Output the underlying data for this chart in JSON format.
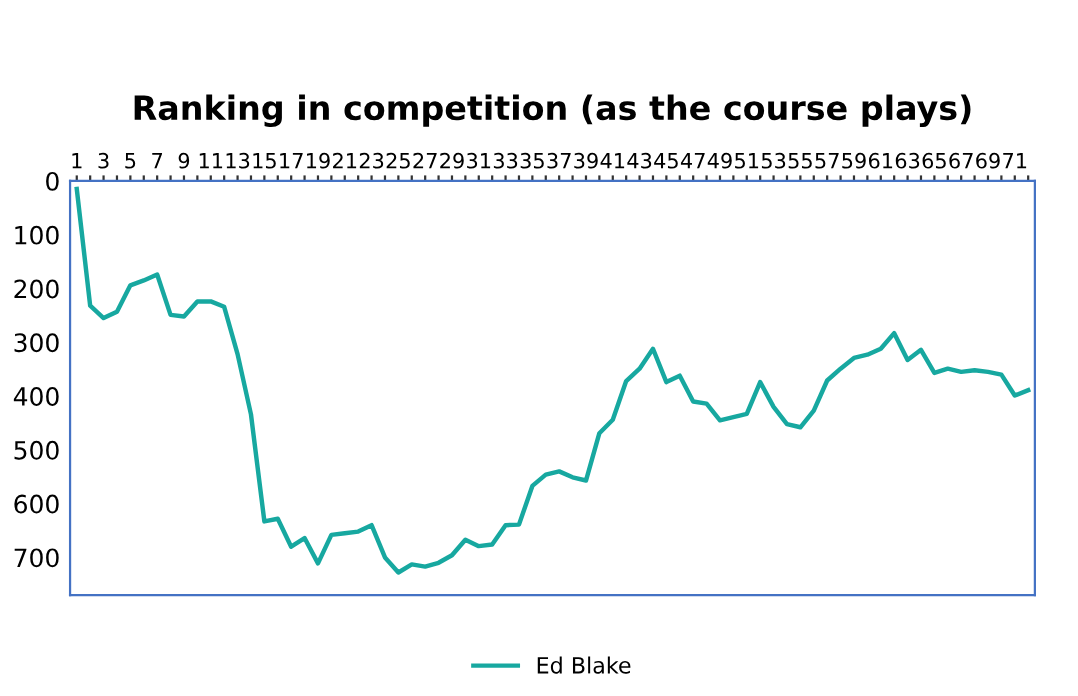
{
  "chart_data": {
    "type": "line",
    "title": "Ranking in competition (as the course plays)",
    "categories": [
      "1",
      null,
      "3",
      null,
      "5",
      null,
      "7",
      null,
      "9",
      null,
      "11",
      null,
      "13",
      null,
      "15",
      null,
      "17",
      null,
      "19",
      null,
      "21",
      null,
      "23",
      null,
      "25",
      null,
      "27",
      null,
      "29",
      null,
      "31",
      null,
      "33",
      null,
      "35",
      null,
      "37",
      null,
      "39",
      null,
      "41",
      null,
      "43",
      null,
      "45",
      null,
      "47",
      null,
      "49",
      null,
      "51",
      null,
      "53",
      null,
      "55",
      null,
      "57",
      null,
      "59",
      null,
      "61",
      null,
      "63",
      null,
      "65",
      null,
      "67",
      null,
      "69",
      null,
      "71",
      null
    ],
    "series": [
      {
        "name": "Ed Blake",
        "color": "#17a8a0",
        "values": [
          15,
          232,
          255,
          243,
          194,
          185,
          174,
          249,
          252,
          224,
          224,
          234,
          322,
          434,
          633,
          628,
          680,
          664,
          711,
          658,
          655,
          652,
          640,
          700,
          728,
          713,
          717,
          710,
          696,
          667,
          679,
          676,
          640,
          639,
          567,
          546,
          540,
          551,
          557,
          469,
          444,
          372,
          349,
          312,
          374,
          362,
          410,
          414,
          445,
          439,
          433,
          374,
          420,
          452,
          458,
          427,
          371,
          349,
          329,
          323,
          312,
          283,
          333,
          314,
          357,
          349,
          355,
          352,
          355,
          360,
          399,
          389
        ]
      }
    ],
    "ylim": [
      770,
      0
    ],
    "yticks": [
      0,
      100,
      200,
      300,
      400,
      500,
      600,
      700
    ],
    "grid": false,
    "legend": "bottom",
    "marker": "none",
    "line_style": "solid"
  }
}
